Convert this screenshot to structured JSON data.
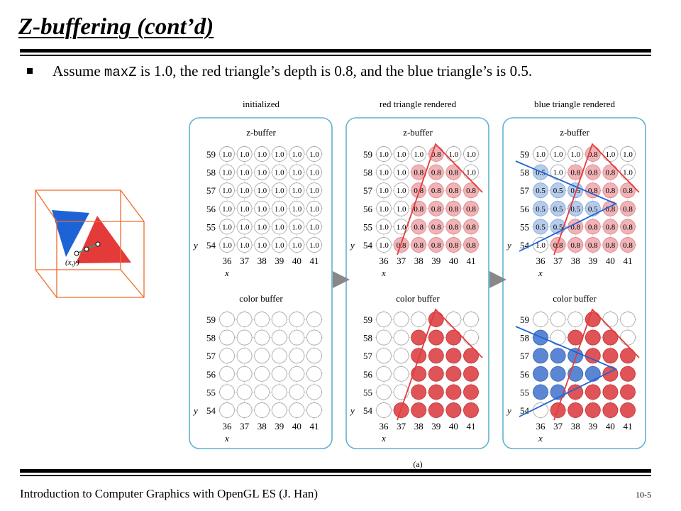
{
  "slide": {
    "title": "Z-buffering (cont’d)",
    "bullet": {
      "before": "Assume ",
      "code": "maxZ",
      "after": " is 1.0, the red triangle’s depth is 0.8, and the blue triangle’s is 0.5."
    },
    "footer": "Introduction to Computer Graphics with OpenGL ES (J. Han)",
    "page_number": "10-5"
  },
  "figure": {
    "caption": "(a)",
    "point_label": "(x,y)",
    "x_axis_label": "x",
    "y_axis_label": "y",
    "x_ticks": [
      "36",
      "37",
      "38",
      "39",
      "40",
      "41"
    ],
    "y_ticks": [
      "59",
      "58",
      "57",
      "56",
      "55",
      "54"
    ],
    "zbuffer_label": "z-buffer",
    "colorbuffer_label": "color buffer",
    "colors": {
      "red": "#e43a3a",
      "blue": "#1e63d6",
      "red_cell": "#f0b3b6",
      "blue_cell": "#b7cceb",
      "red_dot": "#e05458",
      "blue_dot": "#5b86d4",
      "panel_border": "#5fb3cf",
      "box": "#f06a2a",
      "arrow": "#888888"
    },
    "panels": [
      {
        "heading": "initialized",
        "zbuffer": [
          [
            "1.0",
            "1.0",
            "1.0",
            "1.0",
            "1.0",
            "1.0"
          ],
          [
            "1.0",
            "1.0",
            "1.0",
            "1.0",
            "1.0",
            "1.0"
          ],
          [
            "1.0",
            "1.0",
            "1.0",
            "1.0",
            "1.0",
            "1.0"
          ],
          [
            "1.0",
            "1.0",
            "1.0",
            "1.0",
            "1.0",
            "1.0"
          ],
          [
            "1.0",
            "1.0",
            "1.0",
            "1.0",
            "1.0",
            "1.0"
          ],
          [
            "1.0",
            "1.0",
            "1.0",
            "1.0",
            "1.0",
            "1.0"
          ]
        ],
        "colorbuffer": [
          [
            "w",
            "w",
            "w",
            "w",
            "w",
            "w"
          ],
          [
            "w",
            "w",
            "w",
            "w",
            "w",
            "w"
          ],
          [
            "w",
            "w",
            "w",
            "w",
            "w",
            "w"
          ],
          [
            "w",
            "w",
            "w",
            "w",
            "w",
            "w"
          ],
          [
            "w",
            "w",
            "w",
            "w",
            "w",
            "w"
          ],
          [
            "w",
            "w",
            "w",
            "w",
            "w",
            "w"
          ]
        ]
      },
      {
        "heading": "red triangle rendered",
        "zbuffer": [
          [
            "1.0",
            "1.0",
            "1.0",
            "0.8",
            "1.0",
            "1.0"
          ],
          [
            "1.0",
            "1.0",
            "0.8",
            "0.8",
            "0.8",
            "1.0"
          ],
          [
            "1.0",
            "1.0",
            "0.8",
            "0.8",
            "0.8",
            "0.8"
          ],
          [
            "1.0",
            "1.0",
            "0.8",
            "0.8",
            "0.8",
            "0.8"
          ],
          [
            "1.0",
            "1.0",
            "0.8",
            "0.8",
            "0.8",
            "0.8"
          ],
          [
            "1.0",
            "0.8",
            "0.8",
            "0.8",
            "0.8",
            "0.8"
          ]
        ],
        "colorbuffer": [
          [
            "w",
            "w",
            "w",
            "r",
            "w",
            "w"
          ],
          [
            "w",
            "w",
            "r",
            "r",
            "r",
            "w"
          ],
          [
            "w",
            "w",
            "r",
            "r",
            "r",
            "r"
          ],
          [
            "w",
            "w",
            "r",
            "r",
            "r",
            "r"
          ],
          [
            "w",
            "w",
            "r",
            "r",
            "r",
            "r"
          ],
          [
            "w",
            "r",
            "r",
            "r",
            "r",
            "r"
          ]
        ]
      },
      {
        "heading": "blue triangle rendered",
        "zbuffer": [
          [
            "1.0",
            "1.0",
            "1.0",
            "0.8",
            "1.0",
            "1.0"
          ],
          [
            "0.5",
            "1.0",
            "0.8",
            "0.8",
            "0.8",
            "1.0"
          ],
          [
            "0.5",
            "0.5",
            "0.5",
            "0.8",
            "0.8",
            "0.8"
          ],
          [
            "0.5",
            "0.5",
            "0.5",
            "0.5",
            "0.8",
            "0.8"
          ],
          [
            "0.5",
            "0.5",
            "0.8",
            "0.8",
            "0.8",
            "0.8"
          ],
          [
            "1.0",
            "0.8",
            "0.8",
            "0.8",
            "0.8",
            "0.8"
          ]
        ],
        "colorbuffer": [
          [
            "w",
            "w",
            "w",
            "r",
            "w",
            "w"
          ],
          [
            "b",
            "w",
            "r",
            "r",
            "r",
            "w"
          ],
          [
            "b",
            "b",
            "b",
            "r",
            "r",
            "r"
          ],
          [
            "b",
            "b",
            "b",
            "b",
            "r",
            "r"
          ],
          [
            "b",
            "b",
            "r",
            "r",
            "r",
            "r"
          ],
          [
            "w",
            "r",
            "r",
            "r",
            "r",
            "r"
          ]
        ]
      }
    ]
  }
}
